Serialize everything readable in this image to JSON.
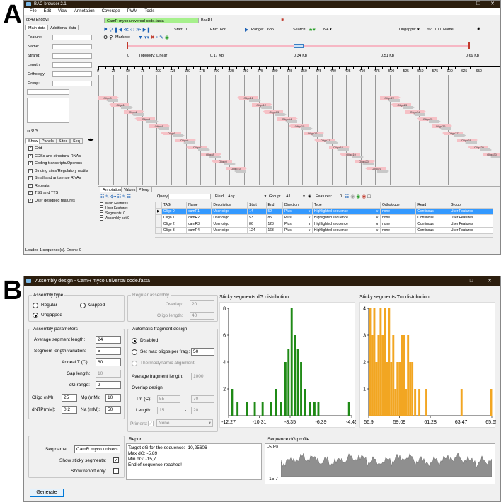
{
  "panel_a_letter": "A",
  "panel_b_letter": "B",
  "win_a": {
    "title": "BAC-browser 2.1",
    "menu": [
      "File",
      "Edit",
      "View",
      "Annotation",
      "Coverage",
      "PWM",
      "Tools"
    ],
    "doc_tab": "gp49 EndoVI",
    "file_tab": "CamR myco universal code.fasta",
    "enzyme_tab": "BseRI",
    "left_tabs": [
      "Main data",
      "Additional data"
    ],
    "fields": [
      "Feature:",
      "Name:",
      "Strand:",
      "Length:",
      "Orthology:",
      "Group:"
    ],
    "lower_tabs": [
      "Show",
      "Panels",
      "Sites",
      "Seq"
    ],
    "show_items": [
      "Grid",
      "CDSs and structural RNAs",
      "Coding transcripts/Operons",
      "Binding sites/Regulatory motifs",
      "Small and antisense RNAs",
      "Repeats",
      "TSS and TTS",
      "User designed features"
    ],
    "toolbar": {
      "start_label": "Start:",
      "start_value": "1",
      "end_label": "End:",
      "end_value": "686",
      "range_label": "Range:",
      "range_value": "685",
      "search_label": "Search:",
      "search_value": "DNA",
      "ungapped_label": "Ungappe:",
      "pct_label": "%:",
      "pct_value": "100",
      "name_label": "Name:",
      "markers_label": "Markers:"
    },
    "overview": {
      "topology": "Topology: Linear",
      "zero": "0",
      "ticks": [
        "0.17 Kb",
        "0.34 Kb",
        "0.51 Kb",
        "0.69 Kb"
      ]
    },
    "ruler": [
      "0",
      "25",
      "50",
      "75",
      "100",
      "125",
      "150",
      "175",
      "200",
      "225",
      "250",
      "275",
      "300",
      "325",
      "350",
      "375",
      "400",
      "425",
      "450",
      "475",
      "500",
      "525",
      "550",
      "575",
      "600",
      "625",
      "650"
    ],
    "oligos": [
      "Oligo0",
      "Oligo1",
      "Oligo2",
      "Oligo3",
      "Oligo4",
      "Oligo5",
      "Oligo6",
      "Oligo7",
      "Oligo8",
      "Oligo9",
      "Oligo10",
      "Oligo11",
      "Oligo12",
      "Oligo13",
      "Oligo14",
      "Oligo15",
      "Oligo16",
      "Oligo17",
      "Oligo18",
      "Oligo19",
      "Oligo20",
      "Oligo21",
      "Oligo22",
      "Oligo23",
      "Oligo24",
      "Oligo25",
      "Oligo26",
      "Oligo27",
      "Oligo28",
      "Oligo29",
      "Oligo30"
    ],
    "bottom_tabs": [
      "Annotation",
      "Values",
      "Pileup"
    ],
    "query_label": "Query:",
    "field_label": "Field:",
    "field_value": "Any",
    "group_label": "Group:",
    "group_value": "All",
    "features_label": "Features:",
    "features_value": "0",
    "tree": [
      "Main Features",
      "User Features",
      "Segments: 0",
      "Assembly set 0"
    ],
    "table_headers": [
      "TAG",
      "Name",
      "Description",
      "Start",
      "End",
      "Direction",
      "Type",
      "Orthologue",
      "Read",
      "Group"
    ],
    "table_rows": [
      [
        "Oligo 0",
        "camR1",
        "User oligo",
        "14",
        "52",
        "Plus",
        "Highlighted sequence",
        "none",
        "Continous",
        "User Features"
      ],
      [
        "Oligo 1",
        "camR2",
        "User oligo",
        "53",
        "85",
        "Plus",
        "Highlighted sequence",
        "none",
        "Continous",
        "User Features"
      ],
      [
        "Oligo 2",
        "camR3",
        "User oligo",
        "86",
        "123",
        "Plus",
        "Highlighted sequence",
        "none",
        "Continous",
        "User Features"
      ],
      [
        "Oligo 3",
        "camR4",
        "User oligo",
        "124",
        "163",
        "Plus",
        "Highlighted sequence",
        "none",
        "Continous",
        "User Features"
      ]
    ],
    "status": "Loaded 1 sequence(s). Errors: 0"
  },
  "win_b": {
    "title": "Assembly design - CamR myco universal code.fasta",
    "assembly_type": {
      "title": "Assembly type",
      "regular": "Regular",
      "gapped": "Gapped",
      "ungapped": "Ungapped"
    },
    "regular_assembly": {
      "title": "Regular assembly",
      "overlap_label": "Overlap:",
      "overlap_value": "20",
      "oligo_length_label": "Oligo length:",
      "oligo_length_value": "40"
    },
    "params": {
      "title": "Assembly parameters",
      "avg_label": "Average segment length:",
      "avg_value": "24",
      "var_label": "Segment length variation:",
      "var_value": "5",
      "anneal_label": "Anneal T (C):",
      "anneal_value": "60",
      "gap_label": "Gap length:",
      "gap_value": "10",
      "dg_label": "dG range:",
      "dg_value": "2",
      "oligo_label": "Oligo (nM):",
      "oligo_value": "25",
      "mg_label": "Mg (mM):",
      "mg_value": "10",
      "dntp_label": "dNTP(mM):",
      "dntp_value": "0,2",
      "na_label": "Na (mM):",
      "na_value": "50"
    },
    "auto": {
      "title": "Automatic fragment design",
      "disabled": "Disabled",
      "setmax": "Set max oligos per frag.:",
      "setmax_value": "50",
      "thermo": "Thermodynamic alignment",
      "avgfrag_label": "Average fragment length:",
      "avgfrag_value": "1000",
      "overlap_design": "Overlap design:",
      "tm_label": "Tm (C):",
      "tm_min": "55",
      "tm_max": "70",
      "len_label": "Length:",
      "len_min": "15",
      "len_max": "20",
      "dash": "-",
      "primers_label": "Primers:",
      "primers_value": "None"
    },
    "seq_name_label": "Seq name:",
    "seq_name_value": "CamR myco univers",
    "show_sticky": "Show sticky segments:",
    "show_report": "Show report only:",
    "report_title": "Report",
    "report_lines": [
      "Target dG for the sequence: -10,25606",
      "Max dG: -5,89",
      "Min dG: -15,7",
      "End of sequence reached!"
    ],
    "profile_title": "Sequence dG profile",
    "profile_top": "-5,89",
    "profile_bottom": "-15,7",
    "generate": "Generate"
  },
  "chart_data": [
    {
      "type": "bar",
      "title": "Sticky segments dG distribution",
      "color": "#1f8a16",
      "ylim": [
        0,
        8
      ],
      "yticks": [
        "8",
        "6",
        "4",
        "2"
      ],
      "xticks": [
        "-12.27",
        "-10.31",
        "-8.35",
        "-6.39",
        "-4.43"
      ],
      "xlim": [
        -12.27,
        -4.43
      ],
      "x": [
        -12.05,
        -11.7,
        -11.1,
        -10.6,
        -10.1,
        -9.55,
        -9.25,
        -8.95,
        -8.65,
        -8.45,
        -8.25,
        -8.05,
        -7.85,
        -7.65,
        -7.4,
        -7.1,
        -6.8,
        -6.55,
        -4.6
      ],
      "values": [
        2,
        1,
        1,
        1,
        1,
        1,
        2,
        1,
        4,
        5,
        8,
        6,
        5,
        4,
        2,
        1,
        1,
        1,
        1
      ]
    },
    {
      "type": "bar",
      "title": "Sticky segments Tm distribution",
      "color": "#f2a622",
      "ylim": [
        0,
        4
      ],
      "yticks": [
        "4",
        "3",
        "2",
        "1"
      ],
      "xticks": [
        "56.9",
        "59.09",
        "61.28",
        "63.47",
        "65.65"
      ],
      "xlim": [
        56.9,
        65.65
      ],
      "x": [
        57.0,
        57.15,
        57.3,
        57.45,
        57.6,
        57.75,
        57.9,
        58.05,
        58.2,
        58.35,
        58.5,
        58.65,
        58.8,
        58.95,
        59.1,
        59.25,
        59.4,
        59.55,
        59.7,
        59.85,
        60.0,
        60.2,
        60.5,
        61.0,
        63.5,
        65.6
      ],
      "values": [
        4,
        3,
        4,
        2,
        3,
        4,
        3,
        4,
        2,
        4,
        2,
        3,
        1,
        2,
        2,
        3,
        3,
        1,
        3,
        2,
        2,
        1,
        1,
        1,
        1,
        1
      ]
    }
  ]
}
